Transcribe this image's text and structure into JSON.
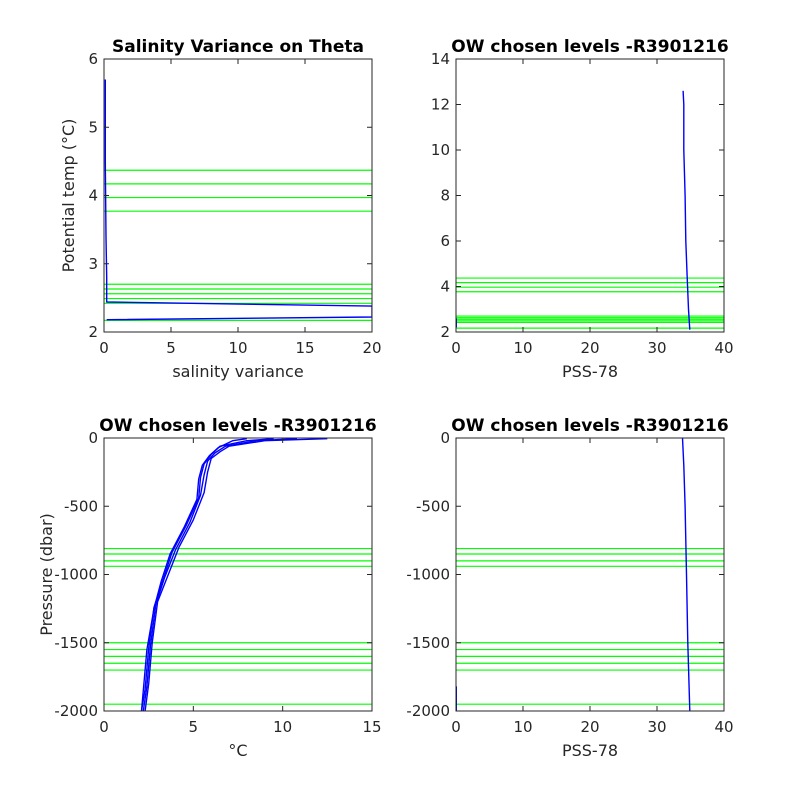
{
  "chart_data": [
    {
      "type": "line",
      "title": "Salinity Variance on Theta",
      "xlabel": "salinity variance",
      "ylabel": "Potential temp (°C)",
      "xlim": [
        0,
        20
      ],
      "ylim": [
        2,
        6
      ],
      "xticks": [
        0,
        5,
        10,
        15,
        20
      ],
      "yticks": [
        2,
        3,
        4,
        5,
        6
      ],
      "y_reversed": false,
      "hlines": [
        4.37,
        4.17,
        3.97,
        3.77,
        2.7,
        2.63,
        2.56,
        2.49,
        2.42,
        2.17
      ],
      "series": [
        {
          "values": [
            [
              0.1,
              5.7
            ],
            [
              0.1,
              4.5
            ],
            [
              0.15,
              3.4
            ],
            [
              0.2,
              2.8
            ],
            [
              0.2,
              2.44
            ],
            [
              20,
              2.38
            ],
            [
              20,
              2.22
            ],
            [
              0.3,
              2.18
            ],
            [
              0.2,
              2.18
            ]
          ]
        }
      ]
    },
    {
      "type": "line",
      "title": "OW chosen levels -R3901216",
      "xlabel": "PSS-78",
      "ylabel": "",
      "xlim": [
        0,
        40
      ],
      "ylim": [
        2,
        14
      ],
      "xticks": [
        0,
        10,
        20,
        30,
        40
      ],
      "yticks": [
        2,
        4,
        6,
        8,
        10,
        12,
        14
      ],
      "y_reversed": false,
      "hlines": [
        4.37,
        4.17,
        3.97,
        3.77,
        2.7,
        2.63,
        2.56,
        2.49,
        2.42,
        2.17
      ],
      "series": [
        {
          "values": [
            [
              33.9,
              12.6
            ],
            [
              34.0,
              12.0
            ],
            [
              34.0,
              10.0
            ],
            [
              34.2,
              8.0
            ],
            [
              34.3,
              6.0
            ],
            [
              34.5,
              4.5
            ],
            [
              34.7,
              3.0
            ],
            [
              34.9,
              2.1
            ]
          ]
        },
        {
          "values": [
            [
              0.05,
              2.6
            ],
            [
              0.05,
              2.2
            ]
          ]
        }
      ]
    },
    {
      "type": "line",
      "title": "OW chosen levels -R3901216",
      "xlabel": "°C",
      "ylabel": "Pressure (dbar)",
      "xlim": [
        0,
        15
      ],
      "ylim": [
        -2000,
        0
      ],
      "xticks": [
        0,
        5,
        10,
        15
      ],
      "yticks": [
        -2000,
        -1500,
        -1000,
        -500,
        0
      ],
      "y_reversed": false,
      "hlines": [
        -810,
        -850,
        -900,
        -940,
        -1500,
        -1550,
        -1600,
        -1650,
        -1700,
        -1950
      ],
      "series": [
        {
          "values": [
            [
              12.5,
              -5
            ],
            [
              9.0,
              -20
            ],
            [
              7.0,
              -60
            ],
            [
              6.5,
              -100
            ],
            [
              6.0,
              -150
            ],
            [
              5.8,
              -250
            ],
            [
              5.6,
              -400
            ],
            [
              5.0,
              -600
            ],
            [
              4.2,
              -800
            ],
            [
              3.6,
              -1000
            ],
            [
              3.0,
              -1200
            ],
            [
              2.7,
              -1500
            ],
            [
              2.5,
              -1800
            ],
            [
              2.3,
              -2000
            ]
          ]
        },
        {
          "values": [
            [
              10.8,
              -5
            ],
            [
              8.5,
              -20
            ],
            [
              6.8,
              -60
            ],
            [
              6.2,
              -110
            ],
            [
              5.8,
              -170
            ],
            [
              5.6,
              -270
            ],
            [
              5.4,
              -420
            ],
            [
              4.8,
              -620
            ],
            [
              4.0,
              -820
            ],
            [
              3.4,
              -1020
            ],
            [
              2.9,
              -1220
            ],
            [
              2.6,
              -1520
            ],
            [
              2.4,
              -1820
            ],
            [
              2.2,
              -2000
            ]
          ]
        },
        {
          "values": [
            [
              9.5,
              -5
            ],
            [
              8.0,
              -20
            ],
            [
              6.5,
              -60
            ],
            [
              6.0,
              -120
            ],
            [
              5.6,
              -190
            ],
            [
              5.4,
              -290
            ],
            [
              5.3,
              -440
            ],
            [
              4.6,
              -640
            ],
            [
              3.8,
              -840
            ],
            [
              3.3,
              -1040
            ],
            [
              2.8,
              -1240
            ],
            [
              2.5,
              -1540
            ],
            [
              2.3,
              -1840
            ],
            [
              2.1,
              -2000
            ]
          ]
        },
        {
          "values": [
            [
              8.0,
              -5
            ],
            [
              7.2,
              -20
            ],
            [
              6.4,
              -70
            ],
            [
              5.9,
              -130
            ],
            [
              5.5,
              -200
            ],
            [
              5.3,
              -300
            ],
            [
              5.2,
              -450
            ],
            [
              4.5,
              -650
            ],
            [
              3.7,
              -850
            ],
            [
              3.2,
              -1050
            ],
            [
              2.8,
              -1250
            ],
            [
              2.4,
              -1550
            ],
            [
              2.2,
              -1850
            ],
            [
              2.1,
              -2000
            ]
          ]
        }
      ]
    },
    {
      "type": "line",
      "title": "OW chosen levels -R3901216",
      "xlabel": "PSS-78",
      "ylabel": "",
      "xlim": [
        0,
        40
      ],
      "ylim": [
        -2000,
        0
      ],
      "xticks": [
        0,
        10,
        20,
        30,
        40
      ],
      "yticks": [
        -2000,
        -1500,
        -1000,
        -500,
        0
      ],
      "y_reversed": false,
      "hlines": [
        -810,
        -850,
        -900,
        -940,
        -1500,
        -1550,
        -1600,
        -1650,
        -1700,
        -1950
      ],
      "series": [
        {
          "values": [
            [
              33.8,
              0
            ],
            [
              34.0,
              -200
            ],
            [
              34.2,
              -500
            ],
            [
              34.4,
              -1000
            ],
            [
              34.6,
              -1500
            ],
            [
              34.9,
              -2000
            ]
          ]
        },
        {
          "values": [
            [
              0.05,
              -1820
            ],
            [
              0.05,
              -2000
            ]
          ]
        }
      ]
    }
  ]
}
